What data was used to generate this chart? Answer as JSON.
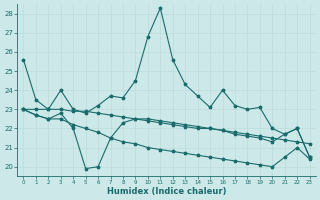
{
  "xlabel": "Humidex (Indice chaleur)",
  "background_color": "#cce8e8",
  "line_color": "#1a6b6b",
  "xlim": [
    -0.5,
    23.5
  ],
  "ylim": [
    19.5,
    28.5
  ],
  "xticks": [
    0,
    1,
    2,
    3,
    4,
    5,
    6,
    7,
    8,
    9,
    10,
    11,
    12,
    13,
    14,
    15,
    16,
    17,
    18,
    19,
    20,
    21,
    22,
    23
  ],
  "yticks": [
    20,
    21,
    22,
    23,
    24,
    25,
    26,
    27,
    28
  ],
  "lines": [
    {
      "x": [
        0,
        1,
        2,
        3,
        4,
        5,
        6,
        7,
        8,
        9,
        10,
        11,
        12,
        13,
        14,
        15,
        16,
        17,
        18,
        19,
        20,
        21,
        22,
        23
      ],
      "y": [
        25.6,
        23.5,
        23.0,
        24.0,
        23.0,
        22.8,
        23.2,
        23.7,
        23.6,
        24.5,
        26.8,
        28.3,
        25.6,
        24.3,
        23.7,
        23.1,
        24.0,
        23.2,
        23.0,
        23.1,
        22.0,
        21.7,
        22.0,
        20.5
      ]
    },
    {
      "x": [
        0,
        1,
        2,
        3,
        4,
        5,
        6,
        7,
        8,
        9,
        10,
        11,
        12,
        13,
        14,
        15,
        16,
        17,
        18,
        19,
        20,
        21,
        22,
        23
      ],
      "y": [
        23.0,
        23.0,
        23.0,
        23.0,
        22.9,
        22.9,
        22.8,
        22.7,
        22.6,
        22.5,
        22.4,
        22.3,
        22.2,
        22.1,
        22.0,
        22.0,
        21.9,
        21.8,
        21.7,
        21.6,
        21.5,
        21.4,
        21.3,
        21.2
      ]
    },
    {
      "x": [
        0,
        1,
        2,
        3,
        4,
        5,
        6,
        7,
        8,
        9,
        10,
        11,
        12,
        13,
        14,
        15,
        16,
        17,
        18,
        19,
        20,
        21,
        22,
        23
      ],
      "y": [
        23.0,
        22.7,
        22.5,
        22.8,
        22.0,
        19.9,
        20.0,
        21.5,
        22.3,
        22.5,
        22.5,
        22.4,
        22.3,
        22.2,
        22.1,
        22.0,
        21.9,
        21.7,
        21.6,
        21.5,
        21.3,
        21.7,
        22.0,
        20.5
      ]
    },
    {
      "x": [
        0,
        1,
        2,
        3,
        4,
        5,
        6,
        7,
        8,
        9,
        10,
        11,
        12,
        13,
        14,
        15,
        16,
        17,
        18,
        19,
        20,
        21,
        22,
        23
      ],
      "y": [
        23.0,
        22.7,
        22.5,
        22.5,
        22.2,
        22.0,
        21.8,
        21.5,
        21.3,
        21.2,
        21.0,
        20.9,
        20.8,
        20.7,
        20.6,
        20.5,
        20.4,
        20.3,
        20.2,
        20.1,
        20.0,
        20.5,
        21.0,
        20.4
      ]
    }
  ]
}
